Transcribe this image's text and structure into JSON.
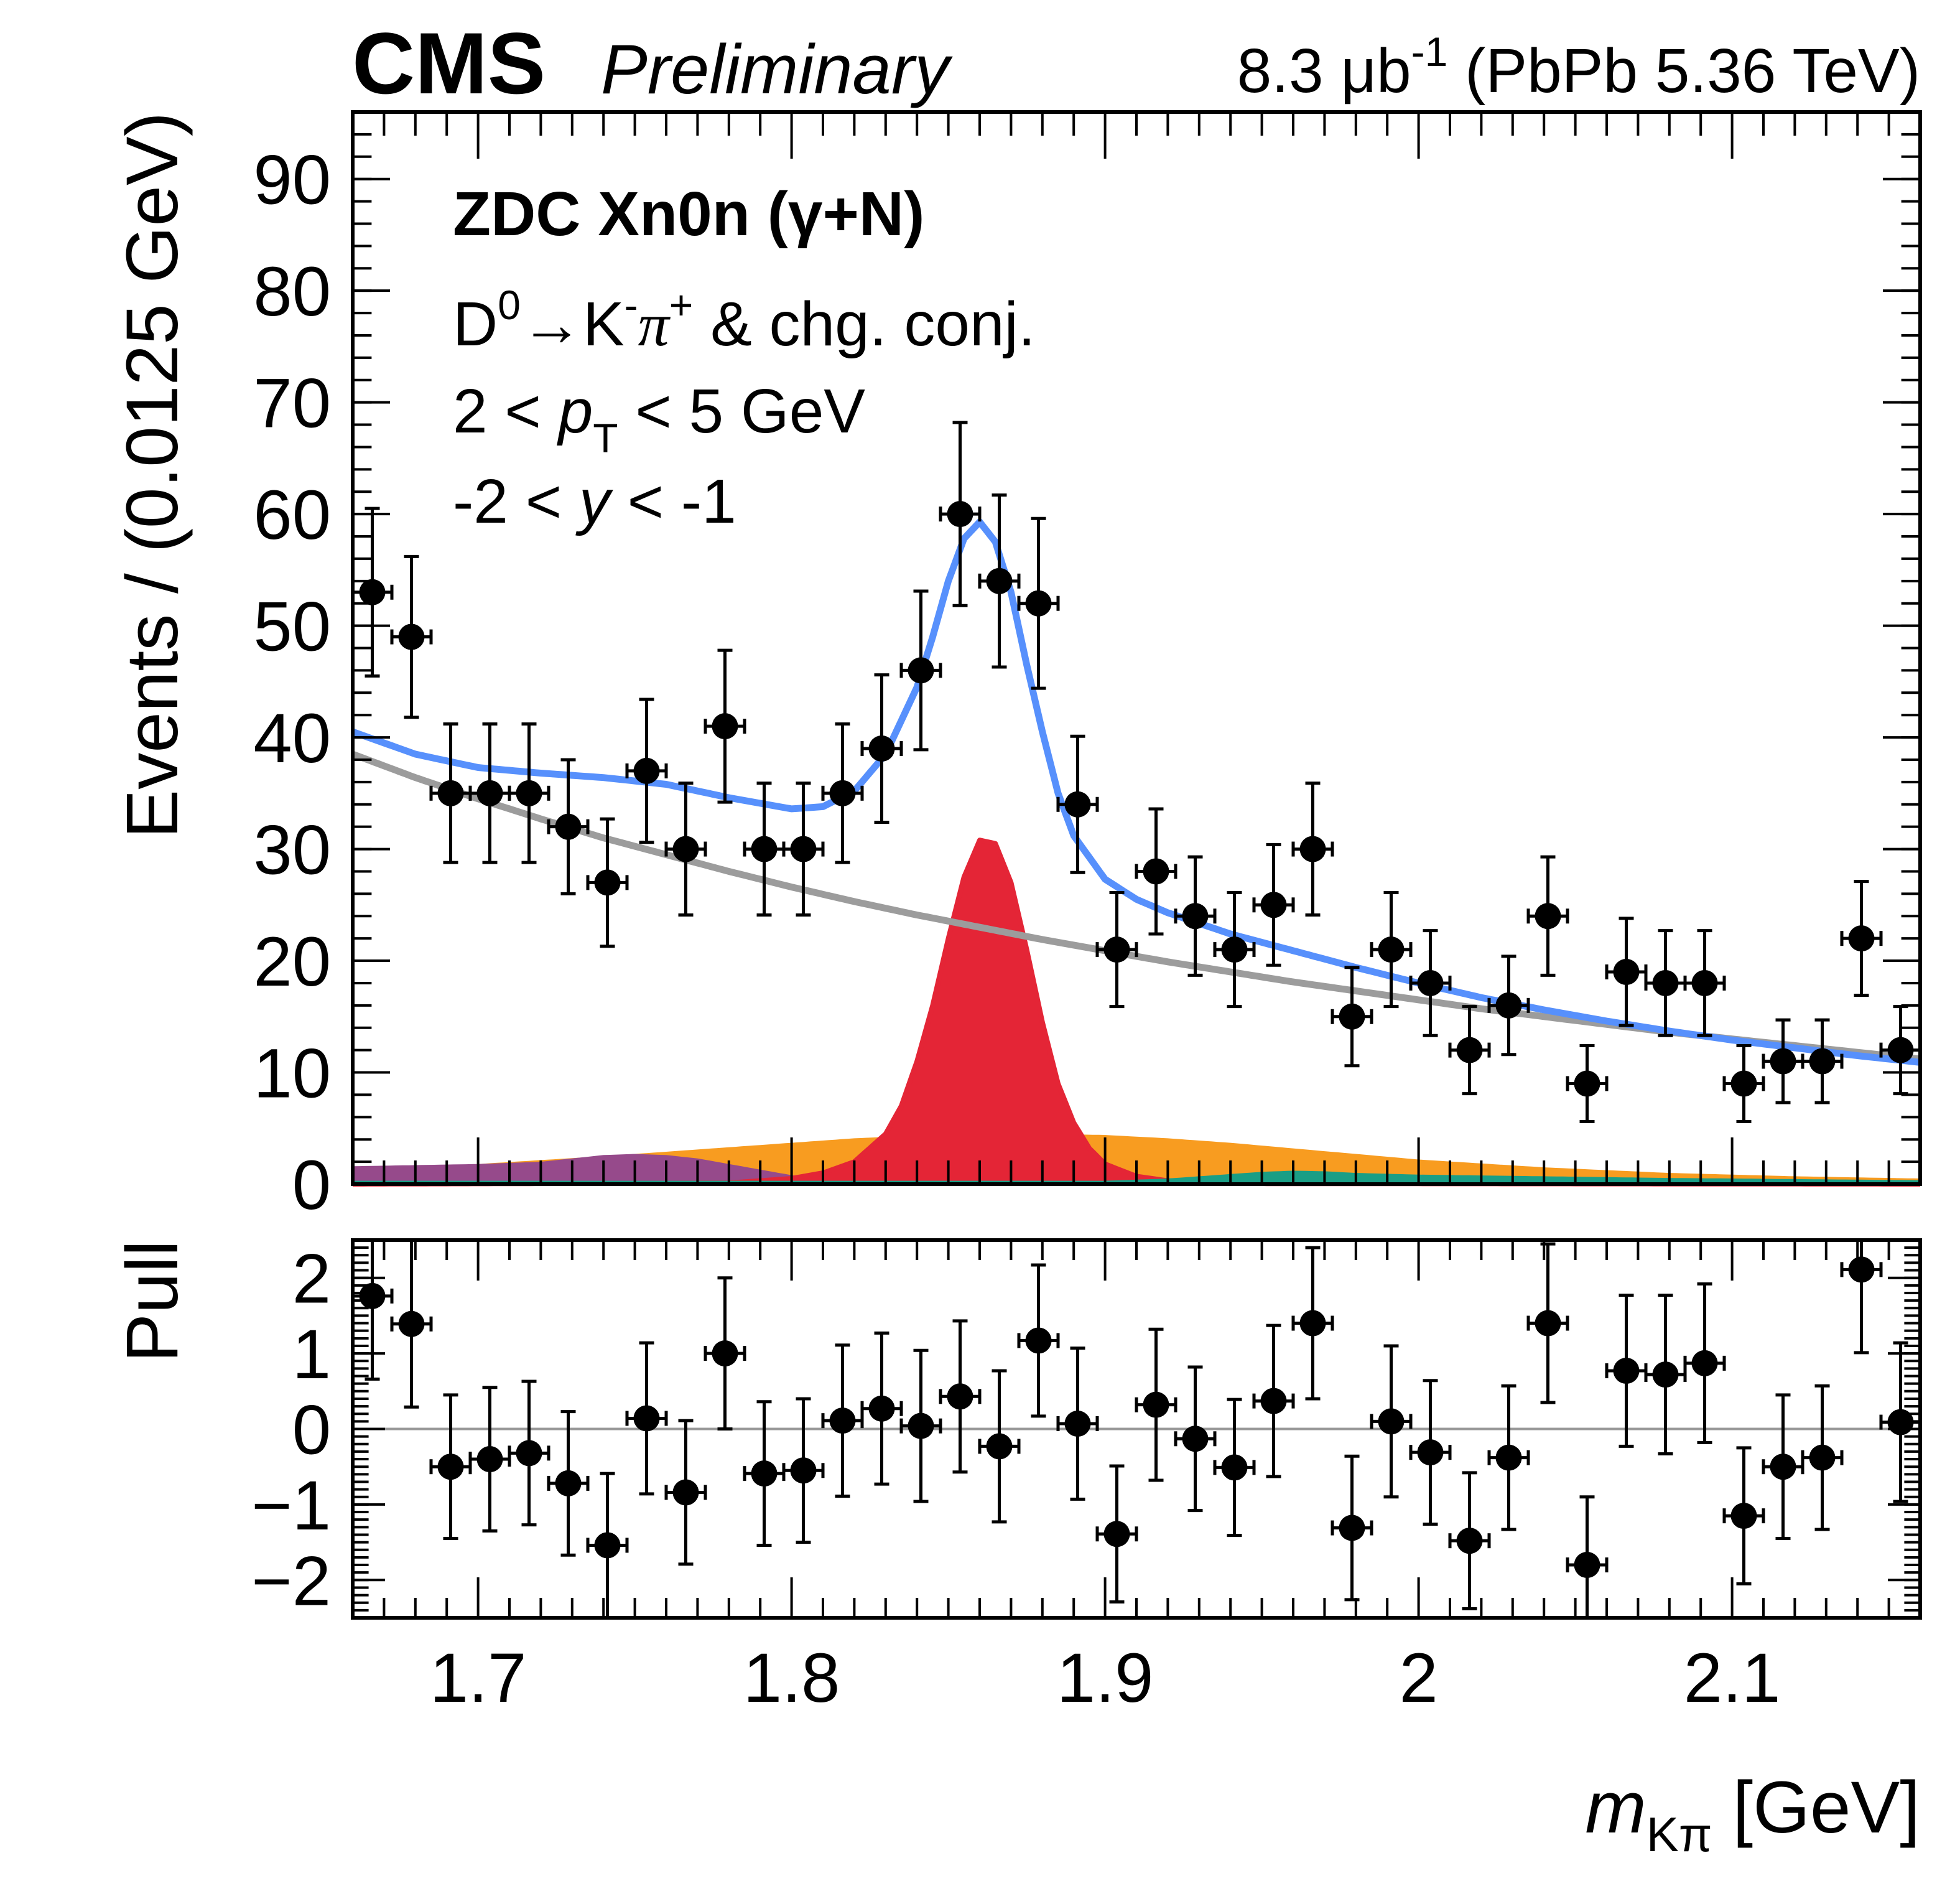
{
  "header": {
    "experiment": "CMS",
    "status": "Preliminary",
    "lumi_value": "8.3 μb",
    "lumi_exp": "-1",
    "lumi_rest": " (PbPb 5.36 TeV)"
  },
  "annotations": {
    "line1": "ZDC Xn0n (γ+N)",
    "line2_d": "D",
    "line2_d_sup": "0",
    "line2_arrow": "→K",
    "line2_k_sup": "-",
    "line2_pi": "π",
    "line2_pi_sup": "+",
    "line2_rest": " & chg. conj.",
    "line3_a": "2 < ",
    "line3_p": "p",
    "line3_sub": "T",
    "line3_b": " < 5 GeV",
    "line4_a": "-2 < ",
    "line4_y": "y",
    "line4_b": " < -1"
  },
  "chart_data": [
    {
      "type": "scatter",
      "panel": "main",
      "title": "",
      "xlabel": "m_Kπ [GeV]",
      "xlabel_main": "m",
      "xlabel_sub": "Kπ",
      "xlabel_unit": " [GeV]",
      "ylabel": "Events / (0.0125 GeV)",
      "xlim": [
        1.66,
        2.16
      ],
      "ylim": [
        0,
        96
      ],
      "xticks": [
        1.7,
        1.8,
        1.9,
        2.0,
        2.1
      ],
      "xtick_labels": [
        "1.7",
        "1.8",
        "1.9",
        "2",
        "2.1"
      ],
      "yticks": [
        0,
        10,
        20,
        30,
        40,
        50,
        60,
        70,
        80,
        90
      ],
      "ytick_labels": [
        "0",
        "10",
        "20",
        "30",
        "40",
        "50",
        "60",
        "70",
        "80",
        "90"
      ],
      "bin_width": 0.0125,
      "grid": false,
      "legend": "none",
      "colors": {
        "data": "#000000",
        "total_fit": "#5790fc",
        "background": "#9c9c9c",
        "signal": "#e42536",
        "swap_component": "#f89c20",
        "purple_component": "#964a8b",
        "teal_component": "#1a9e85"
      },
      "data_points": {
        "x": [
          1.66625,
          1.67875,
          1.69125,
          1.70375,
          1.71625,
          1.72875,
          1.74125,
          1.75375,
          1.76625,
          1.77875,
          1.79125,
          1.80375,
          1.81625,
          1.82875,
          1.84125,
          1.85375,
          1.86625,
          1.87875,
          1.89125,
          1.90375,
          1.91625,
          1.92875,
          1.94125,
          1.95375,
          1.96625,
          1.97875,
          1.99125,
          2.00375,
          2.01625,
          2.02875,
          2.04125,
          2.05375,
          2.06625,
          2.07875,
          2.09125,
          2.10375,
          2.11625,
          2.12875,
          2.14125,
          2.15375
        ],
        "y": [
          53,
          49,
          35,
          35,
          35,
          32,
          27,
          37,
          30,
          41,
          30,
          30,
          35,
          39,
          46,
          60,
          54,
          52,
          34,
          21,
          28,
          24,
          21,
          25,
          30,
          15,
          21,
          18,
          12,
          16,
          24,
          9,
          19,
          18,
          18,
          9,
          11,
          11,
          22,
          12
        ],
        "y_err": [
          7.5,
          7.2,
          6.2,
          6.2,
          6.2,
          6.0,
          5.7,
          6.4,
          5.9,
          6.8,
          5.9,
          5.9,
          6.2,
          6.6,
          7.1,
          8.2,
          7.7,
          7.6,
          6.1,
          5.1,
          5.6,
          5.3,
          5.1,
          5.4,
          5.9,
          4.4,
          5.1,
          4.7,
          3.9,
          4.4,
          5.3,
          3.4,
          4.8,
          4.7,
          4.7,
          3.4,
          3.7,
          3.7,
          5.1,
          3.9
        ]
      },
      "curves": {
        "total_fit": {
          "x": [
            1.66,
            1.68,
            1.7,
            1.72,
            1.74,
            1.76,
            1.78,
            1.8,
            1.81,
            1.82,
            1.83,
            1.84,
            1.845,
            1.85,
            1.855,
            1.86,
            1.865,
            1.87,
            1.875,
            1.88,
            1.885,
            1.89,
            1.9,
            1.91,
            1.92,
            1.94,
            1.96,
            1.98,
            2.0,
            2.02,
            2.04,
            2.06,
            2.08,
            2.1,
            2.12,
            2.14,
            2.16
          ],
          "y": [
            40.5,
            38.5,
            37.3,
            36.8,
            36.4,
            35.8,
            34.6,
            33.6,
            33.8,
            35.2,
            38.5,
            44.5,
            49.0,
            54.0,
            57.8,
            59.3,
            57.5,
            53.0,
            46.5,
            40.5,
            35.0,
            31.2,
            27.3,
            25.5,
            24.3,
            22.4,
            20.9,
            19.4,
            18.0,
            16.7,
            15.6,
            14.6,
            13.7,
            12.9,
            12.2,
            11.5,
            10.9
          ]
        },
        "background": {
          "x": [
            1.66,
            1.68,
            1.7,
            1.72,
            1.74,
            1.76,
            1.78,
            1.8,
            1.82,
            1.84,
            1.86,
            1.88,
            1.9,
            1.92,
            1.94,
            1.96,
            1.98,
            2.0,
            2.02,
            2.04,
            2.06,
            2.08,
            2.1,
            2.12,
            2.14,
            2.16
          ],
          "y": [
            38.5,
            36.4,
            34.5,
            32.7,
            31.0,
            29.5,
            28.0,
            26.6,
            25.3,
            24.1,
            23.0,
            21.9,
            20.9,
            19.9,
            19.0,
            18.1,
            17.3,
            16.5,
            15.7,
            15.0,
            14.3,
            13.6,
            13.0,
            12.4,
            11.8,
            11.2
          ]
        },
        "signal": {
          "x": [
            1.66,
            1.78,
            1.8,
            1.81,
            1.82,
            1.83,
            1.835,
            1.84,
            1.845,
            1.85,
            1.855,
            1.86,
            1.865,
            1.87,
            1.875,
            1.88,
            1.885,
            1.89,
            1.895,
            1.9,
            1.91,
            1.92,
            1.94,
            2.16
          ],
          "y": [
            0,
            0.1,
            0.5,
            1.0,
            2.0,
            4.5,
            7.0,
            11.0,
            16.0,
            22.0,
            27.5,
            30.8,
            30.5,
            27.0,
            21.0,
            14.5,
            9.0,
            5.5,
            3.2,
            1.8,
            0.7,
            0.3,
            0.05,
            0
          ]
        },
        "swap_component": {
          "x": [
            1.66,
            1.7,
            1.74,
            1.78,
            1.8,
            1.82,
            1.84,
            1.86,
            1.88,
            1.9,
            1.92,
            1.94,
            1.96,
            1.98,
            2.0,
            2.04,
            2.08,
            2.12,
            2.16
          ],
          "y": [
            1.3,
            1.8,
            2.5,
            3.3,
            3.7,
            4.1,
            4.35,
            4.5,
            4.5,
            4.4,
            4.1,
            3.7,
            3.2,
            2.7,
            2.2,
            1.5,
            1.0,
            0.7,
            0.5
          ]
        },
        "purple_component": {
          "x": [
            1.66,
            1.68,
            1.7,
            1.72,
            1.73,
            1.74,
            1.75,
            1.76,
            1.77,
            1.78,
            1.79,
            1.8,
            1.81,
            1.82,
            1.84,
            2.16
          ],
          "y": [
            1.6,
            1.7,
            1.8,
            2.0,
            2.3,
            2.6,
            2.7,
            2.6,
            2.3,
            1.8,
            1.3,
            0.8,
            0.45,
            0.25,
            0.1,
            0.0
          ]
        },
        "teal_component": {
          "x": [
            1.66,
            1.9,
            1.92,
            1.94,
            1.95,
            1.96,
            1.97,
            1.98,
            2.0,
            2.04,
            2.08,
            2.12,
            2.16
          ],
          "y": [
            0.3,
            0.3,
            0.5,
            0.9,
            1.1,
            1.2,
            1.15,
            1.0,
            0.85,
            0.7,
            0.55,
            0.45,
            0.35
          ]
        }
      }
    },
    {
      "type": "scatter",
      "panel": "pull",
      "ylabel": "Pull",
      "xlim": [
        1.66,
        2.16
      ],
      "ylim": [
        -2.5,
        2.5
      ],
      "yticks": [
        -2,
        -1,
        0,
        1,
        2
      ],
      "ytick_labels": [
        "−2",
        "−1",
        "0",
        "1",
        "2"
      ],
      "reference_line": 0,
      "reference_color": "#999999",
      "x": [
        1.66625,
        1.67875,
        1.69125,
        1.70375,
        1.71625,
        1.72875,
        1.74125,
        1.75375,
        1.76625,
        1.77875,
        1.79125,
        1.80375,
        1.81625,
        1.82875,
        1.84125,
        1.85375,
        1.86625,
        1.87875,
        1.89125,
        1.90375,
        1.91625,
        1.92875,
        1.94125,
        1.95375,
        1.96625,
        1.97875,
        1.99125,
        2.00375,
        2.01625,
        2.02875,
        2.04125,
        2.05375,
        2.06625,
        2.07875,
        2.09125,
        2.10375,
        2.11625,
        2.12875,
        2.14125,
        2.15375
      ],
      "y": [
        1.76,
        1.39,
        -0.5,
        -0.4,
        -0.32,
        -0.72,
        -1.54,
        0.14,
        -0.84,
        1.0,
        -0.59,
        -0.55,
        0.11,
        0.27,
        0.04,
        0.43,
        -0.23,
        1.17,
        0.07,
        -1.39,
        0.32,
        -0.13,
        -0.51,
        0.37,
        1.4,
        -1.31,
        0.1,
        -0.31,
        -1.48,
        -0.38,
        1.4,
        -1.8,
        0.77,
        0.72,
        0.87,
        -1.15,
        -0.5,
        -0.38,
        2.11,
        0.09
      ],
      "y_err": [
        1.1,
        1.1,
        0.95,
        0.95,
        0.95,
        0.95,
        0.95,
        1.0,
        0.95,
        1.0,
        0.95,
        0.95,
        1.0,
        1.0,
        1.0,
        1.0,
        1.0,
        1.0,
        1.0,
        0.9,
        1.0,
        0.95,
        0.9,
        1.0,
        1.0,
        0.95,
        1.0,
        0.95,
        0.9,
        0.95,
        1.05,
        0.9,
        1.0,
        1.05,
        1.05,
        0.9,
        0.95,
        0.95,
        1.1,
        1.05
      ]
    }
  ]
}
